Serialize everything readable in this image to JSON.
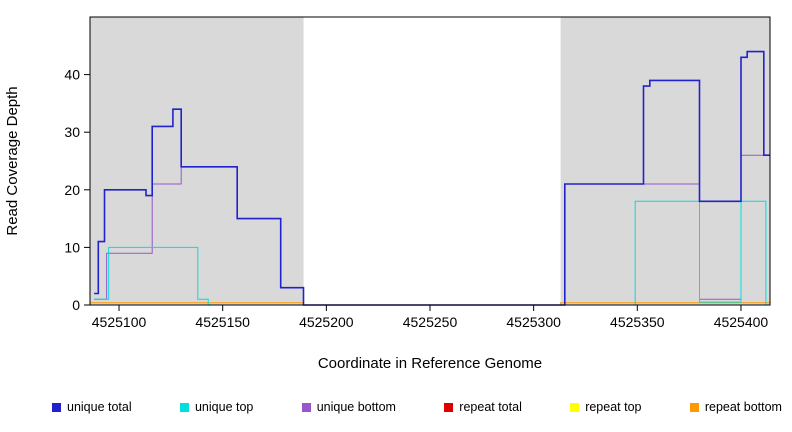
{
  "chart_data": {
    "type": "line",
    "style": "step",
    "title": "",
    "xlabel": "Coordinate in Reference Genome",
    "ylabel": "Read Coverage Depth",
    "xlim": [
      4525086,
      4525414
    ],
    "ylim": [
      0,
      50
    ],
    "x_ticks": [
      4525100,
      4525150,
      4525200,
      4525250,
      4525300,
      4525350,
      4525400
    ],
    "y_ticks": [
      0,
      10,
      20,
      30,
      40
    ],
    "grid": false,
    "shade_color": "#d9d9d9",
    "shaded_regions": [
      {
        "from": 4525086,
        "to": 4525189
      },
      {
        "from": 4525313,
        "to": 4525414
      }
    ],
    "series": [
      {
        "name": "repeat total",
        "color": "#dd0000",
        "width": 1,
        "steps": [
          [
            4525086,
            0
          ],
          [
            4525414,
            0
          ]
        ]
      },
      {
        "name": "repeat top",
        "color": "#ffff00",
        "width": 1,
        "steps": [
          [
            4525086,
            0
          ],
          [
            4525414,
            0
          ]
        ]
      },
      {
        "name": "repeat bottom",
        "color": "#ff9900",
        "width": 1,
        "steps": [
          [
            4525086,
            0.4
          ],
          [
            4525189,
            0
          ],
          [
            4525313,
            0.4
          ],
          [
            4525414,
            0.4
          ]
        ]
      },
      {
        "name": "unique bottom",
        "color": "#9955cc",
        "width": 1,
        "steps": [
          [
            4525088,
            1
          ],
          [
            4525094,
            9
          ],
          [
            4525116,
            21
          ],
          [
            4525130,
            24
          ],
          [
            4525157,
            15
          ],
          [
            4525178,
            3
          ],
          [
            4525189,
            0
          ],
          [
            4525315,
            21
          ],
          [
            4525380,
            1
          ],
          [
            4525400,
            26
          ],
          [
            4525414,
            26
          ]
        ]
      },
      {
        "name": "unique top",
        "color": "#00dede",
        "width": 1,
        "steps": [
          [
            4525088,
            1
          ],
          [
            4525095,
            10
          ],
          [
            4525138,
            1
          ],
          [
            4525143,
            0
          ],
          [
            4525349,
            18
          ],
          [
            4525380,
            0.5
          ],
          [
            4525400,
            18
          ],
          [
            4525412,
            0
          ],
          [
            4525414,
            0
          ]
        ]
      },
      {
        "name": "unique total",
        "color": "#2222cc",
        "width": 1.6,
        "steps": [
          [
            4525088,
            2
          ],
          [
            4525090,
            11
          ],
          [
            4525093,
            20
          ],
          [
            4525113,
            19
          ],
          [
            4525116,
            31
          ],
          [
            4525126,
            34
          ],
          [
            4525130,
            24
          ],
          [
            4525157,
            15
          ],
          [
            4525178,
            3
          ],
          [
            4525189,
            0
          ],
          [
            4525315,
            21
          ],
          [
            4525353,
            38
          ],
          [
            4525356,
            39
          ],
          [
            4525380,
            18
          ],
          [
            4525400,
            43
          ],
          [
            4525403,
            44
          ],
          [
            4525411,
            26
          ],
          [
            4525414,
            26
          ]
        ]
      }
    ],
    "legend": [
      {
        "label": "unique total",
        "color": "#2222cc"
      },
      {
        "label": "unique top",
        "color": "#00dede"
      },
      {
        "label": "unique bottom",
        "color": "#9955cc"
      },
      {
        "label": "repeat total",
        "color": "#dd0000"
      },
      {
        "label": "repeat top",
        "color": "#ffff00"
      },
      {
        "label": "repeat bottom",
        "color": "#ff9900"
      }
    ]
  }
}
